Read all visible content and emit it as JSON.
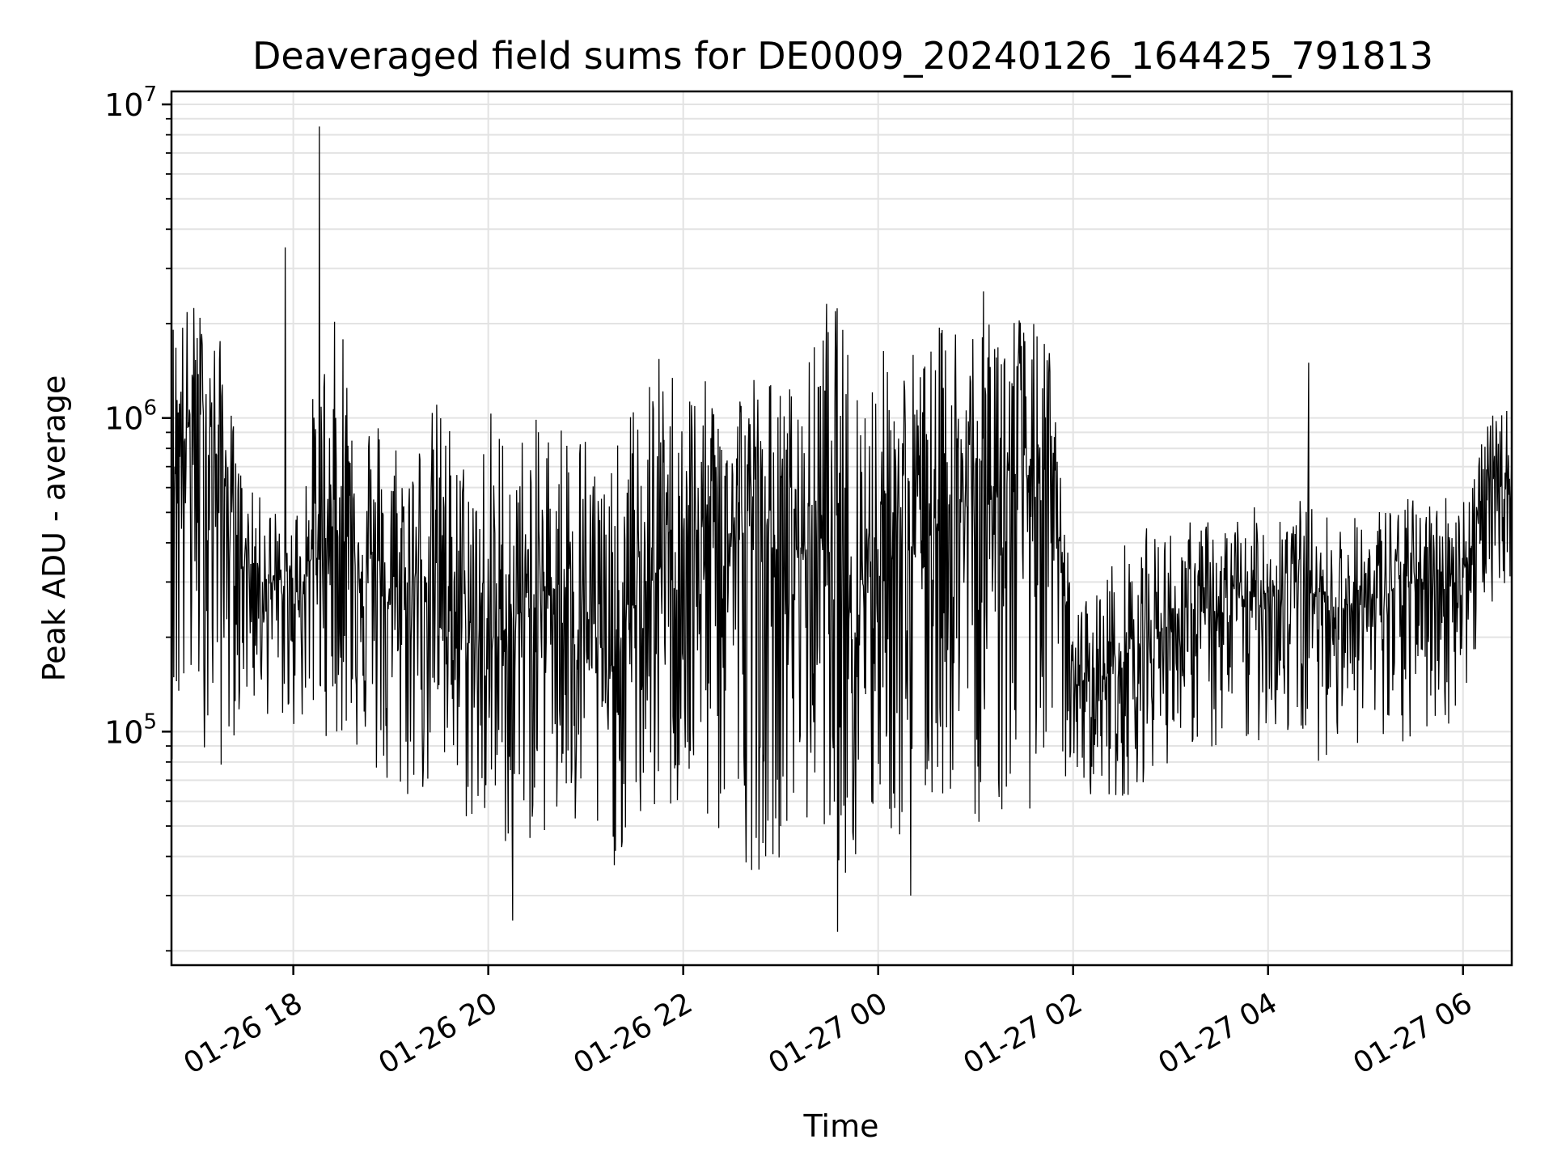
{
  "chart_data": {
    "type": "line",
    "title": "Deaveraged field sums for DE0009_20240126_164425_791813",
    "xlabel": "Time",
    "ylabel": "Peak ADU - average",
    "yscale": "log",
    "ylim": [
      18000,
      11000000
    ],
    "xlim": [
      "01-26 16:45",
      "01-27 06:30"
    ],
    "x_ticks": [
      "01-26 18",
      "01-26 20",
      "01-26 22",
      "01-27 00",
      "01-27 02",
      "01-27 04",
      "01-27 06"
    ],
    "y_ticks": [
      {
        "base": "10",
        "exp": "5",
        "value": 100000
      },
      {
        "base": "10",
        "exp": "6",
        "value": 1000000
      },
      {
        "base": "10",
        "exp": "7",
        "value": 10000000
      }
    ],
    "grid": true,
    "line_color": "#000000",
    "series": [
      {
        "x": [
          "01-26 16:45",
          "01-26 17:00",
          "01-26 17:15",
          "01-26 17:30",
          "01-26 17:45",
          "01-26 18:00",
          "01-26 18:15",
          "01-26 18:30",
          "01-26 18:45",
          "01-26 19:00",
          "01-26 19:15",
          "01-26 19:30",
          "01-26 19:45",
          "01-26 20:00",
          "01-26 20:15",
          "01-26 20:30",
          "01-26 20:45",
          "01-26 21:00",
          "01-26 21:15",
          "01-26 21:30",
          "01-26 21:45",
          "01-26 22:00",
          "01-26 22:15",
          "01-26 22:30",
          "01-26 22:45",
          "01-26 23:00",
          "01-26 23:15",
          "01-26 23:30",
          "01-26 23:45",
          "01-27 00:00",
          "01-27 00:15",
          "01-27 00:30",
          "01-27 00:45",
          "01-27 01:00",
          "01-27 01:15",
          "01-27 01:30",
          "01-27 01:45",
          "01-27 02:00",
          "01-27 02:15",
          "01-27 02:30",
          "01-27 02:45",
          "01-27 03:00",
          "01-27 03:15",
          "01-27 03:30",
          "01-27 03:45",
          "01-27 04:00",
          "01-27 04:15",
          "01-27 04:30",
          "01-27 04:45",
          "01-27 05:00",
          "01-27 05:15",
          "01-27 05:30",
          "01-27 05:45",
          "01-27 06:00",
          "01-27 06:15",
          "01-27 06:30"
        ],
        "y": [
          800000,
          1000000,
          700000,
          350000,
          300000,
          260000,
          400000,
          450000,
          350000,
          250000,
          300000,
          350000,
          200000,
          180000,
          230000,
          260000,
          300000,
          250000,
          150000,
          250000,
          330000,
          380000,
          400000,
          420000,
          450000,
          350000,
          400000,
          420000,
          300000,
          400000,
          380000,
          450000,
          550000,
          500000,
          600000,
          650000,
          700000,
          150000,
          140000,
          170000,
          200000,
          220000,
          240000,
          230000,
          260000,
          280000,
          300000,
          270000,
          260000,
          250000,
          280000,
          300000,
          320000,
          330000,
          550000,
          650000
        ],
        "envelope_high": [
          2300000,
          2400000,
          1800000,
          600000,
          550000,
          500000,
          1500000,
          2400000,
          1200000,
          1000000,
          900000,
          1200000,
          800000,
          1200000,
          900000,
          1000000,
          1100000,
          1000000,
          700000,
          1200000,
          1600000,
          1500000,
          1300000,
          1400000,
          1500000,
          1300000,
          1400000,
          2800000,
          1600000,
          1700000,
          1800000,
          1700000,
          2300000,
          2500000,
          2700000,
          2200000,
          1800000,
          250000,
          300000,
          400000,
          450000,
          450000,
          480000,
          480000,
          500000,
          550000,
          580000,
          520000,
          480000,
          500000,
          560000,
          560000,
          580000,
          600000,
          1000000,
          1100000
        ],
        "envelope_low": [
          80000,
          100000,
          70000,
          120000,
          110000,
          100000,
          100000,
          90000,
          80000,
          50000,
          60000,
          60000,
          50000,
          45000,
          40000,
          45000,
          40000,
          40000,
          35000,
          45000,
          50000,
          50000,
          45000,
          40000,
          35000,
          40000,
          45000,
          50000,
          25000,
          50000,
          40000,
          50000,
          60000,
          50000,
          50000,
          55000,
          60000,
          70000,
          60000,
          60000,
          70000,
          80000,
          90000,
          80000,
          80000,
          100000,
          90000,
          80000,
          90000,
          90000,
          70000,
          90000,
          100000,
          110000,
          250000,
          300000
        ]
      },
      {
        "spikes": [
          {
            "x": "01-26 17:55",
            "y": 3500000
          },
          {
            "x": "01-26 18:16",
            "y": 8500000
          },
          {
            "x": "01-26 23:35",
            "y": 2800000
          },
          {
            "x": "01-26 20:15",
            "y": 25000
          },
          {
            "x": "01-26 23:35",
            "y": 23000
          },
          {
            "x": "01-27 00:20",
            "y": 30000
          },
          {
            "x": "01-27 04:25",
            "y": 1500000
          }
        ]
      }
    ]
  }
}
